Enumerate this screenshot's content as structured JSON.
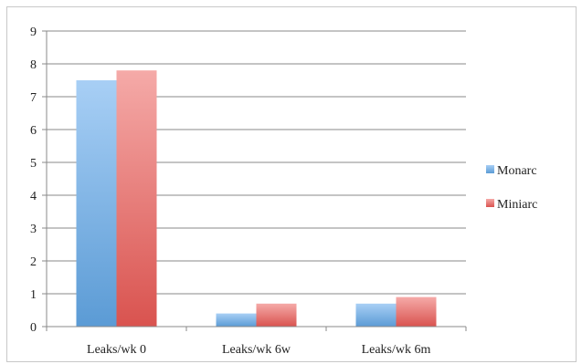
{
  "chart_data": {
    "type": "bar",
    "categories": [
      "Leaks/wk 0",
      "Leaks/wk 6w",
      "Leaks/wk 6m"
    ],
    "series": [
      {
        "name": "Monarc",
        "values": [
          7.5,
          0.4,
          0.7
        ],
        "color": "#5b9bd5",
        "color_light": "#a8cff5"
      },
      {
        "name": "Miniarc",
        "values": [
          7.8,
          0.7,
          0.9
        ],
        "color": "#d9534f",
        "color_light": "#f5aaa8"
      }
    ],
    "yticks": [
      "0",
      "1",
      "2",
      "3",
      "4",
      "5",
      "6",
      "7",
      "8",
      "9"
    ],
    "ylim": [
      0,
      9
    ],
    "grid": true,
    "legend_position": "right"
  }
}
